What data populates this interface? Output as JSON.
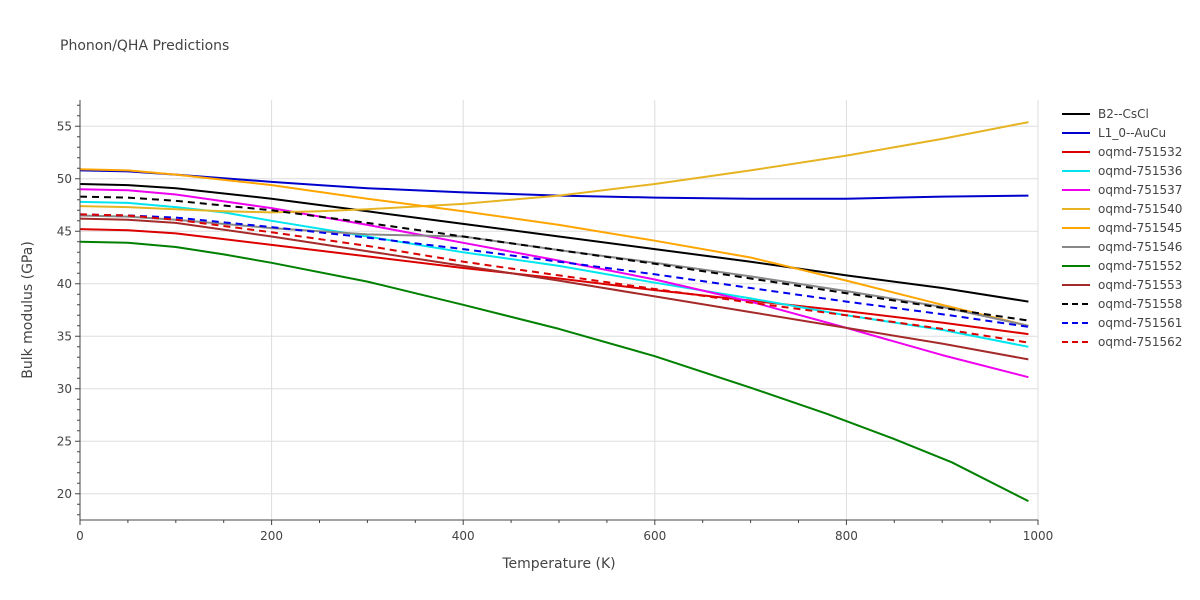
{
  "chart_data": {
    "type": "line",
    "title": "Phonon/QHA Predictions",
    "xlabel": "Temperature (K)",
    "ylabel": "Bulk modulus (GPa)",
    "xlim": [
      0,
      1000
    ],
    "ylim": [
      17.5,
      57.5
    ],
    "xticks": [
      0,
      200,
      400,
      600,
      800,
      1000
    ],
    "yticks": [
      20,
      25,
      30,
      35,
      40,
      45,
      50,
      55
    ],
    "grid": true,
    "legend_position": "right",
    "series": [
      {
        "name": "B2--CsCl",
        "color": "#000000",
        "dash": false,
        "x": [
          0,
          50,
          100,
          200,
          300,
          400,
          500,
          600,
          700,
          800,
          900,
          990
        ],
        "y": [
          49.5,
          49.4,
          49.1,
          48.1,
          46.9,
          45.7,
          44.5,
          43.3,
          42.1,
          40.8,
          39.6,
          38.3
        ]
      },
      {
        "name": "L1_0--AuCu",
        "color": "#0000cc",
        "dash": false,
        "x": [
          0,
          50,
          100,
          200,
          250,
          300,
          400,
          500,
          600,
          700,
          800,
          900,
          990
        ],
        "y": [
          50.8,
          50.7,
          50.4,
          49.7,
          49.4,
          49.1,
          48.7,
          48.4,
          48.2,
          48.1,
          48.1,
          48.3,
          48.4
        ]
      },
      {
        "name": "oqmd-751532",
        "color": "#dd0000",
        "dash": false,
        "x": [
          0,
          50,
          100,
          200,
          300,
          400,
          500,
          600,
          700,
          800,
          900,
          990
        ],
        "y": [
          45.2,
          45.1,
          44.8,
          43.7,
          42.6,
          41.5,
          40.5,
          39.4,
          38.4,
          37.4,
          36.3,
          35.2
        ]
      },
      {
        "name": "oqmd-751536",
        "color": "#00e5ee",
        "dash": false,
        "x": [
          0,
          50,
          100,
          150,
          200,
          300,
          400,
          500,
          600,
          700,
          800,
          900,
          990
        ],
        "y": [
          47.8,
          47.7,
          47.3,
          46.8,
          46.0,
          44.5,
          43.0,
          41.7,
          40.1,
          38.6,
          37.0,
          35.6,
          34.0
        ]
      },
      {
        "name": "oqmd-751537",
        "color": "#ee00ee",
        "dash": false,
        "x": [
          0,
          50,
          100,
          200,
          300,
          400,
          500,
          600,
          700,
          800,
          900,
          990
        ],
        "y": [
          49.0,
          48.9,
          48.5,
          47.2,
          45.6,
          43.9,
          42.2,
          40.4,
          38.3,
          35.8,
          33.2,
          31.1
        ]
      },
      {
        "name": "oqmd-751540",
        "color": "#e6b422",
        "dash": false,
        "x": [
          0,
          50,
          100,
          150,
          200,
          250,
          300,
          400,
          500,
          600,
          700,
          800,
          900,
          990
        ],
        "y": [
          47.4,
          47.3,
          47.1,
          46.9,
          46.8,
          46.9,
          47.1,
          47.6,
          48.4,
          49.5,
          50.8,
          52.2,
          53.8,
          55.4
        ]
      },
      {
        "name": "oqmd-751545",
        "color": "#ffa500",
        "dash": false,
        "x": [
          0,
          50,
          100,
          200,
          300,
          400,
          500,
          600,
          700,
          800,
          900,
          990
        ],
        "y": [
          50.9,
          50.8,
          50.4,
          49.4,
          48.1,
          46.9,
          45.6,
          44.1,
          42.5,
          40.3,
          38.0,
          36.0
        ]
      },
      {
        "name": "oqmd-751546",
        "color": "#888888",
        "dash": false,
        "x": [
          0,
          50,
          100,
          200,
          300,
          400,
          500,
          600,
          700,
          800,
          900,
          990
        ],
        "y": [
          46.5,
          46.4,
          46.1,
          45.3,
          44.7,
          44.5,
          43.2,
          42.0,
          40.7,
          39.3,
          37.8,
          36.0
        ]
      },
      {
        "name": "oqmd-751552",
        "color": "#008000",
        "dash": false,
        "x": [
          0,
          50,
          100,
          150,
          200,
          300,
          400,
          500,
          600,
          700,
          780,
          850,
          910,
          990
        ],
        "y": [
          44.0,
          43.9,
          43.5,
          42.8,
          42.0,
          40.2,
          38.0,
          35.7,
          33.1,
          30.1,
          27.6,
          25.2,
          23.0,
          19.3
        ]
      },
      {
        "name": "oqmd-751553",
        "color": "#a52a2a",
        "dash": false,
        "x": [
          0,
          50,
          100,
          200,
          300,
          400,
          500,
          600,
          700,
          800,
          900,
          990
        ],
        "y": [
          46.2,
          46.1,
          45.8,
          44.5,
          43.1,
          41.7,
          40.3,
          38.8,
          37.3,
          35.8,
          34.3,
          32.8
        ]
      },
      {
        "name": "oqmd-751558",
        "color": "#000000",
        "dash": true,
        "x": [
          0,
          50,
          100,
          200,
          300,
          400,
          500,
          600,
          700,
          800,
          900,
          990
        ],
        "y": [
          48.3,
          48.2,
          47.9,
          47.0,
          45.8,
          44.5,
          43.2,
          41.9,
          40.5,
          39.1,
          37.7,
          36.5
        ]
      },
      {
        "name": "oqmd-751561",
        "color": "#0000ee",
        "dash": true,
        "x": [
          0,
          50,
          100,
          200,
          300,
          400,
          500,
          600,
          700,
          800,
          900,
          990
        ],
        "y": [
          46.6,
          46.5,
          46.3,
          45.4,
          44.4,
          43.3,
          42.1,
          40.9,
          39.6,
          38.3,
          37.1,
          35.9
        ]
      },
      {
        "name": "oqmd-751562",
        "color": "#dd0000",
        "dash": true,
        "x": [
          0,
          50,
          100,
          200,
          300,
          400,
          500,
          600,
          700,
          800,
          900,
          990
        ],
        "y": [
          46.6,
          46.5,
          46.1,
          44.9,
          43.6,
          42.1,
          40.8,
          39.5,
          38.2,
          37.0,
          35.7,
          34.4
        ]
      }
    ]
  }
}
